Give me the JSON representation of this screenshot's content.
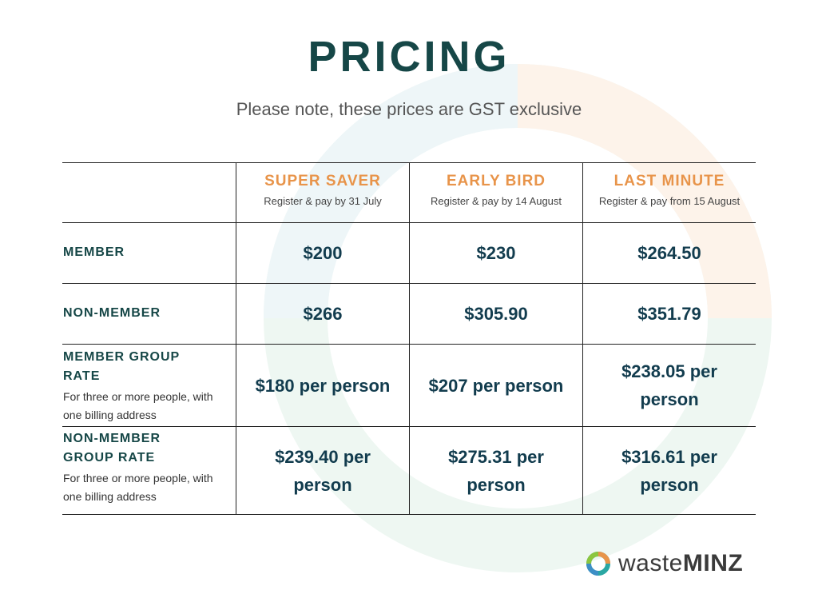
{
  "page": {
    "title": "PRICING",
    "subtitle": "Please note, these prices are GST exclusive"
  },
  "columns": [
    {
      "tier": "SUPER SAVER",
      "note": "Register & pay by 31 July"
    },
    {
      "tier": "EARLY BIRD",
      "note": "Register & pay by 14 August"
    },
    {
      "tier": "LAST MINUTE",
      "note": "Register & pay from 15 August"
    }
  ],
  "rows": [
    {
      "label": "MEMBER",
      "desc": "",
      "prices": [
        "$200",
        "$230",
        "$264.50"
      ]
    },
    {
      "label": "NON-MEMBER",
      "desc": "",
      "prices": [
        "$266",
        "$305.90",
        "$351.79"
      ]
    },
    {
      "label": "MEMBER GROUP RATE",
      "desc": "For three or more people, with one billing address",
      "prices": [
        "$180 per person",
        "$207 per person",
        "$238.05 per person"
      ]
    },
    {
      "label": "NON-MEMBER GROUP RATE",
      "desc": "For three or more people, with one billing address",
      "prices": [
        "$239.40 per person",
        "$275.31 per person",
        "$316.61 per person"
      ]
    }
  ],
  "logo": {
    "text_light": "waste",
    "text_bold": "MINZ",
    "icon": "wasteminz-ring-logo-icon"
  },
  "colors": {
    "title": "#164747",
    "tier": "#e8944a",
    "price": "#123c4e"
  }
}
